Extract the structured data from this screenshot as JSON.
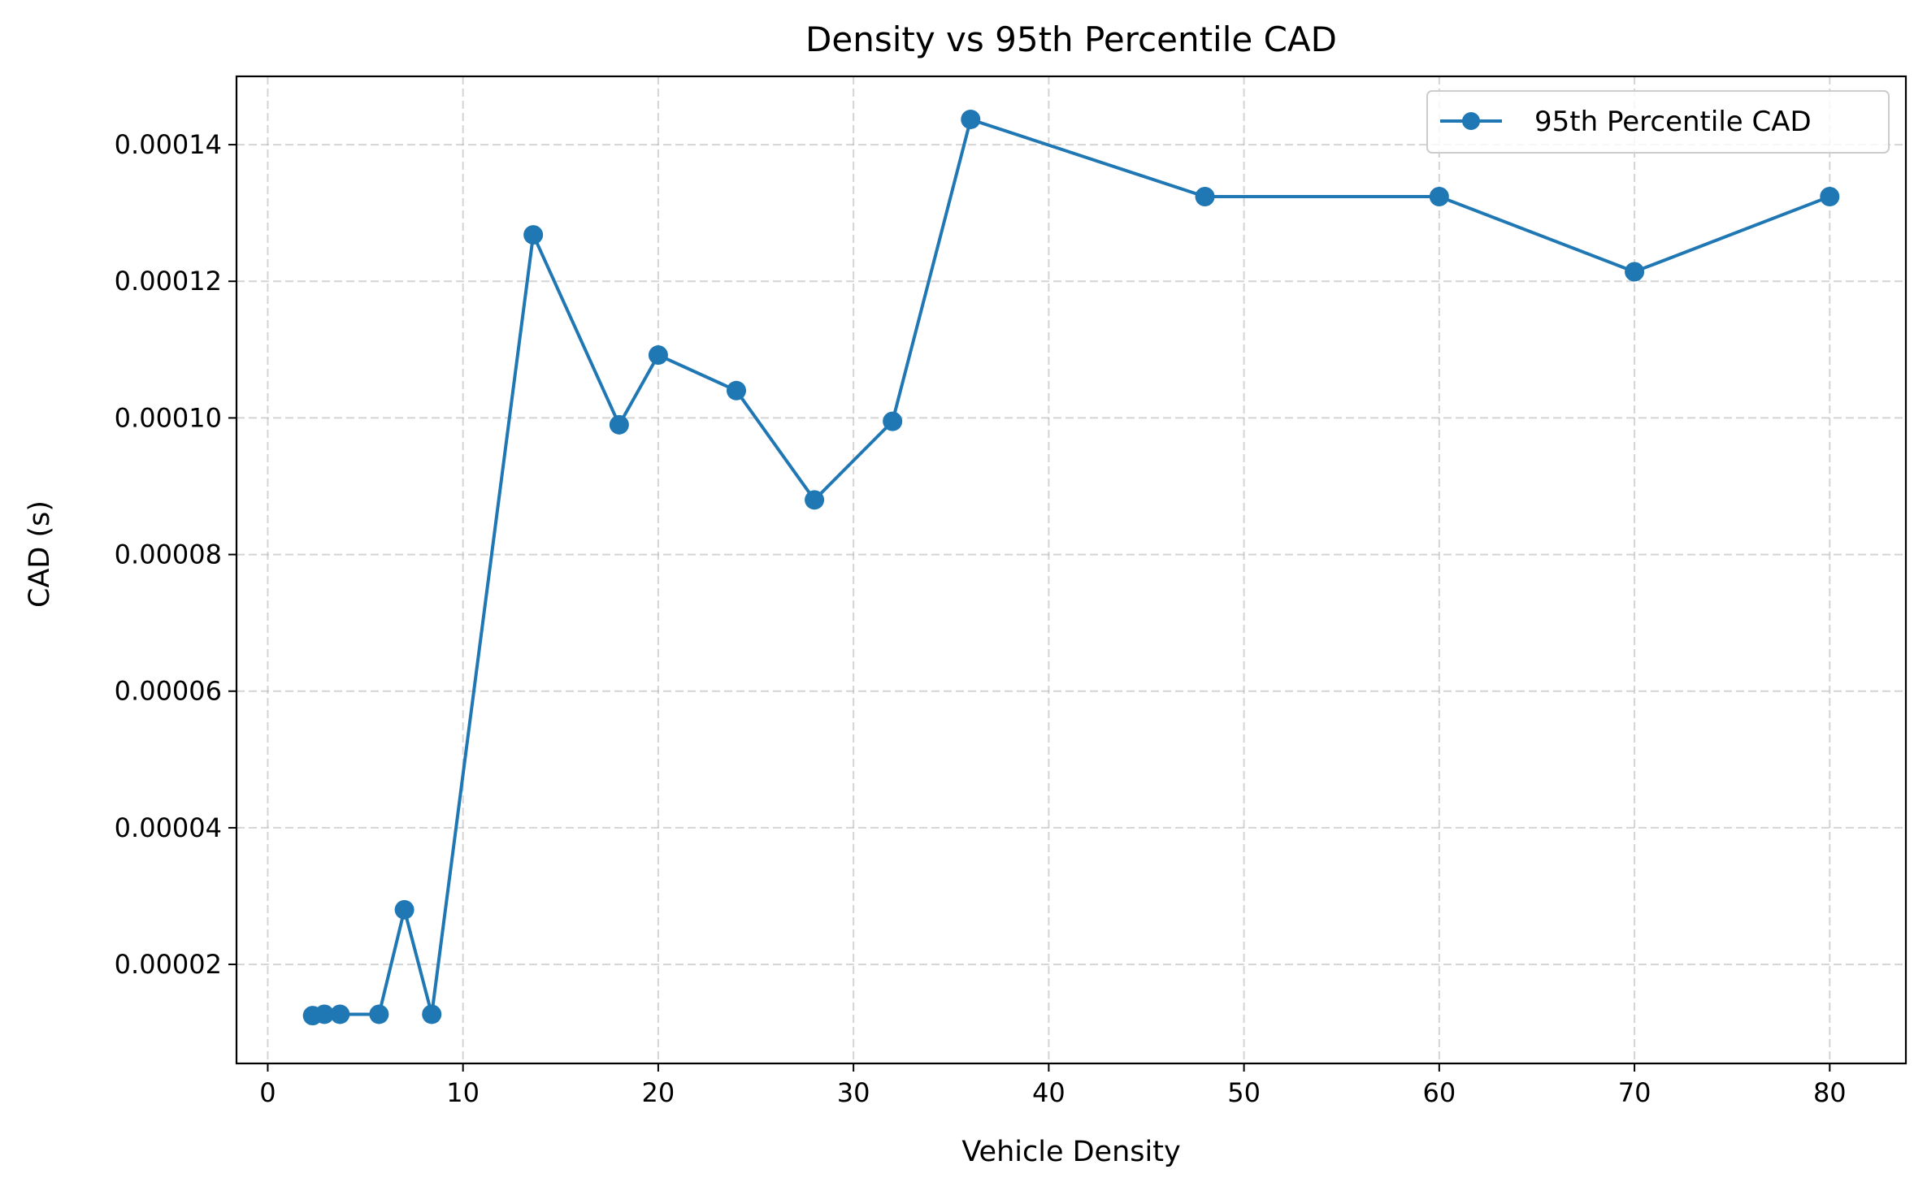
{
  "chart_data": {
    "type": "line",
    "title": "Density vs 95th Percentile CAD",
    "xlabel": "Vehicle Density",
    "ylabel": "CAD (s)",
    "xlim": [
      -1.6,
      83.9
    ],
    "ylim": [
      5.5e-06,
      0.00015
    ],
    "xticks": [
      0,
      10,
      20,
      30,
      40,
      50,
      60,
      70,
      80
    ],
    "xtick_labels": [
      "0",
      "10",
      "20",
      "30",
      "40",
      "50",
      "60",
      "70",
      "80"
    ],
    "yticks": [
      2e-05,
      4e-05,
      6e-05,
      8e-05,
      0.0001,
      0.00012,
      0.00014
    ],
    "ytick_labels": [
      "0.00002",
      "0.00004",
      "0.00006",
      "0.00008",
      "0.00010",
      "0.00012",
      "0.00014"
    ],
    "grid": true,
    "legend_position": "top-right",
    "series": [
      {
        "name": "95th Percentile CAD",
        "color": "#1f77b4",
        "marker": "circle",
        "x": [
          2.3,
          2.9,
          3.7,
          5.7,
          7.0,
          8.4,
          13.6,
          18.0,
          20.0,
          24.0,
          28.0,
          32.0,
          36.0,
          48.0,
          60.0,
          70.0,
          80.0
        ],
        "y": [
          1.25e-05,
          1.27e-05,
          1.27e-05,
          1.27e-05,
          2.8e-05,
          1.27e-05,
          0.0001268,
          9.9e-05,
          0.0001092,
          0.000104,
          8.8e-05,
          9.95e-05,
          0.0001437,
          0.0001324,
          0.0001324,
          0.0001214,
          0.0001324
        ]
      }
    ]
  }
}
